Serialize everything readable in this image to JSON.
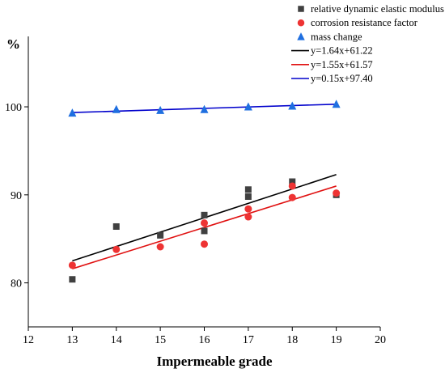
{
  "chart_data": {
    "type": "scatter",
    "xlabel": "Impermeable grade",
    "ylabel": "%",
    "xlim": [
      12,
      20
    ],
    "ylim": [
      75,
      108
    ],
    "x_ticks": [
      12,
      13,
      14,
      15,
      16,
      17,
      18,
      19,
      20
    ],
    "y_ticks": [
      80,
      90,
      100
    ],
    "grid": false,
    "legend_position": "top-right",
    "series": [
      {
        "name": "relative dynamic elastic modulus",
        "marker": "square",
        "color": "#404040",
        "points": [
          [
            13,
            80.4
          ],
          [
            14,
            86.4
          ],
          [
            15,
            85.4
          ],
          [
            16,
            85.9
          ],
          [
            16,
            87.7
          ],
          [
            17,
            89.8
          ],
          [
            17,
            90.6
          ],
          [
            18,
            91.5
          ],
          [
            19,
            90.0
          ]
        ]
      },
      {
        "name": "corrosion resistance factor",
        "marker": "circle",
        "color": "#ee3333",
        "points": [
          [
            13,
            82.0
          ],
          [
            14,
            83.8
          ],
          [
            15,
            84.1
          ],
          [
            16,
            84.4
          ],
          [
            16,
            86.8
          ],
          [
            17,
            87.5
          ],
          [
            17,
            88.4
          ],
          [
            18,
            89.7
          ],
          [
            18,
            91.0
          ],
          [
            19,
            90.2
          ]
        ]
      },
      {
        "name": "mass change",
        "marker": "triangle",
        "color": "#1f6fe0",
        "points": [
          [
            13,
            99.3
          ],
          [
            14,
            99.7
          ],
          [
            15,
            99.6
          ],
          [
            16,
            99.7
          ],
          [
            17,
            100.0
          ],
          [
            18,
            100.1
          ],
          [
            19,
            100.3
          ]
        ]
      }
    ],
    "fits": [
      {
        "name": "y=1.64x+61.22",
        "color": "#000000",
        "x_range": [
          13,
          19
        ],
        "y_range": [
          82.5,
          92.3
        ]
      },
      {
        "name": "y=1.55x+61.57",
        "color": "#e01010",
        "x_range": [
          13,
          19
        ],
        "y_range": [
          81.6,
          91.0
        ]
      },
      {
        "name": "y=0.15x+97.40",
        "color": "#0000cc",
        "x_range": [
          13,
          19
        ],
        "y_range": [
          99.35,
          100.3
        ]
      }
    ]
  }
}
